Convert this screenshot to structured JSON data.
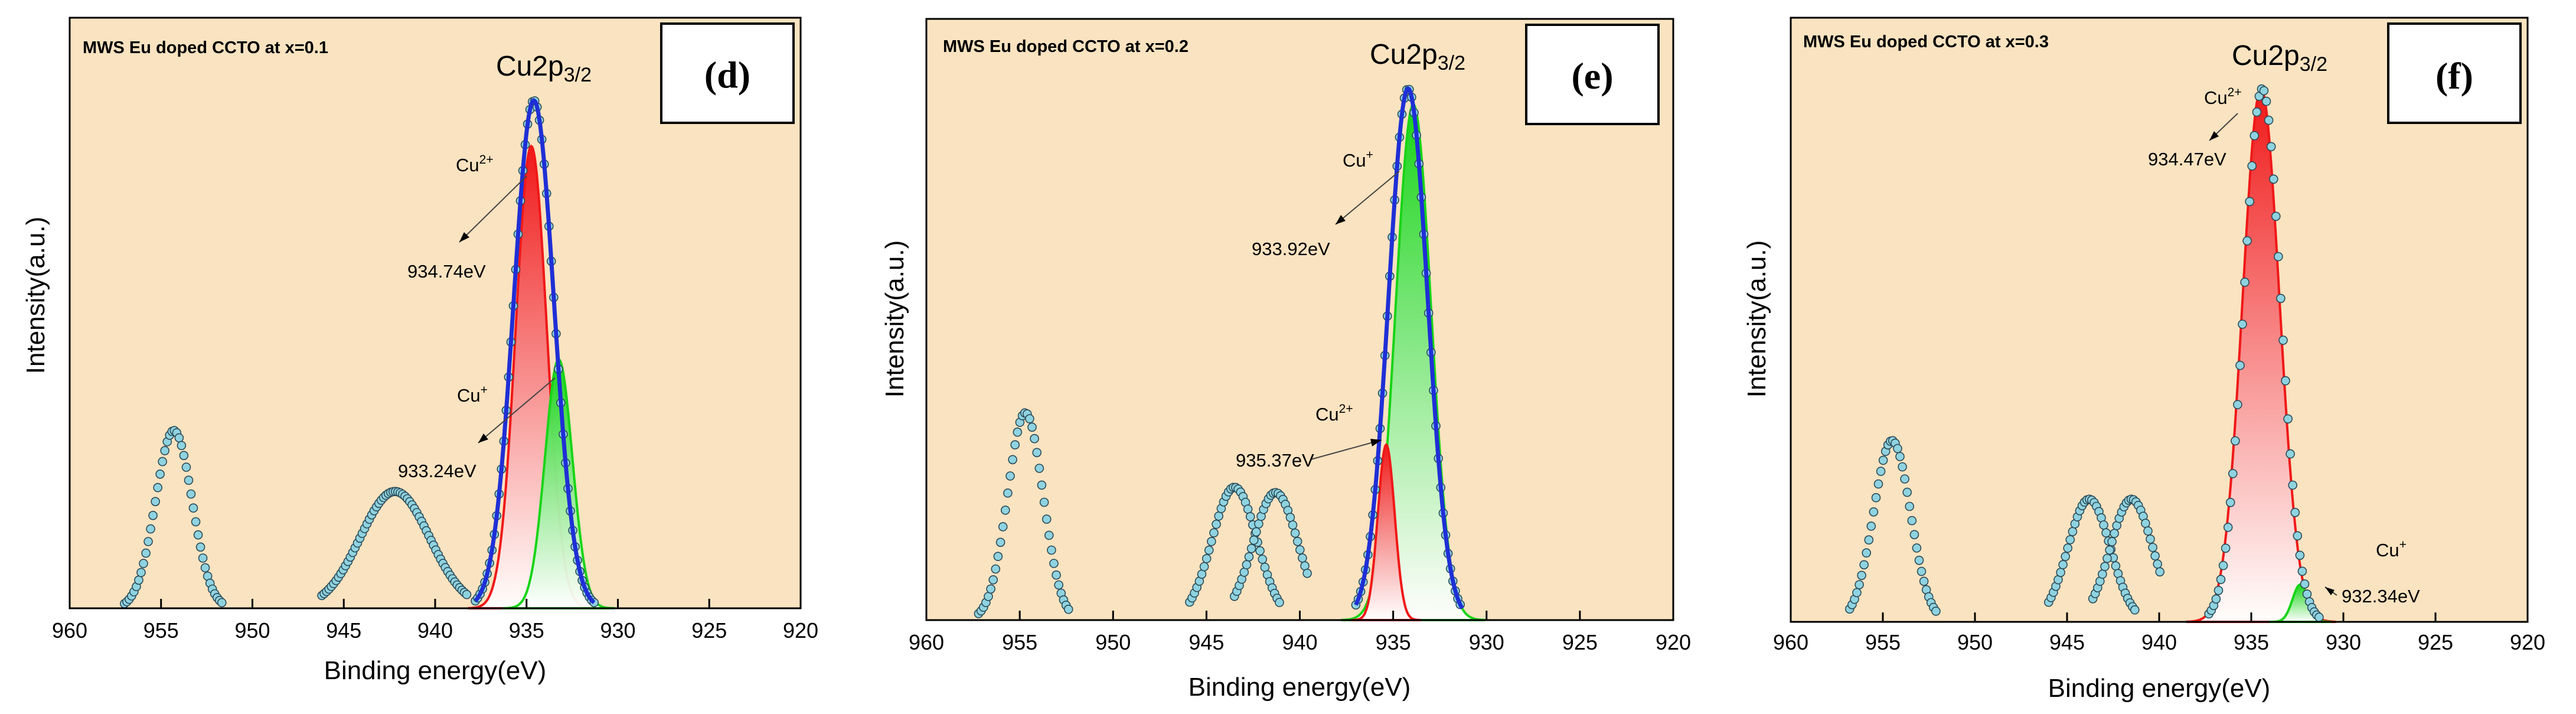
{
  "chart_data": [
    {
      "type": "line",
      "title": "MWS Eu doped CCTO at x=0.1",
      "panel_label": "(d)",
      "peak_title": "Cu2p",
      "peak_title_sub": "3/2",
      "xlabel": "Binding energy(eV)",
      "ylabel": "Intensity(a.u.)",
      "xlim": [
        960,
        920
      ],
      "xticks": [
        "960",
        "955",
        "950",
        "945",
        "940",
        "935",
        "930",
        "925",
        "920"
      ],
      "ylim": [
        0,
        1
      ],
      "background_color": "#FAE3C0",
      "series": [
        {
          "name": "raw data",
          "kind": "markers",
          "color": "#8FD3E0",
          "peaks": [
            {
              "center": 954.3,
              "sigma": 1.0,
              "height": 0.35,
              "range": [
                957.0,
                951.6
              ]
            },
            {
              "center": 942.2,
              "sigma": 1.9,
              "height": 0.23,
              "range": [
                946.2,
                938.2
              ]
            },
            {
              "center": 934.6,
              "sigma": 1.1,
              "height": 1.0,
              "range": [
                937.8,
                931.3
              ]
            }
          ]
        },
        {
          "name": "envelope fit",
          "kind": "line",
          "color": "#1F2FD6",
          "peaks": [
            {
              "center": 934.6,
              "sigma": 1.1,
              "height": 1.0,
              "range": [
                937.8,
                931.3
              ]
            }
          ]
        },
        {
          "name": "Cu2+",
          "kind": "filled",
          "color": "#F01818",
          "center": 934.74,
          "sigma": 0.85,
          "height": 0.91
        },
        {
          "name": "Cu+",
          "kind": "filled",
          "color": "#18D418",
          "center": 933.24,
          "sigma": 0.75,
          "height": 0.49
        }
      ],
      "annotations": [
        {
          "label": "Cu",
          "sup": "2+",
          "value": "934.74eV"
        },
        {
          "label": "Cu",
          "sup": "+",
          "value": "933.24eV"
        }
      ]
    },
    {
      "type": "line",
      "title": "MWS Eu doped CCTO at x=0.2",
      "panel_label": "(e)",
      "peak_title": "Cu2p",
      "peak_title_sub": "3/2",
      "xlabel": "Binding energy(eV)",
      "ylabel": "Intensity(a.u.)",
      "xlim": [
        960,
        920
      ],
      "xticks": [
        "960",
        "955",
        "950",
        "945",
        "940",
        "935",
        "930",
        "925",
        "920"
      ],
      "ylim": [
        0,
        1
      ],
      "background_color": "#FAE3C0",
      "series": [
        {
          "name": "raw data",
          "kind": "markers",
          "color": "#8FD3E0",
          "peaks": [
            {
              "center": 954.7,
              "sigma": 0.95,
              "height": 0.39,
              "range": [
                957.2,
                952.3
              ]
            },
            {
              "center": 943.5,
              "sigma": 1.2,
              "height": 0.25,
              "range": [
                945.9,
                941.0
              ]
            },
            {
              "center": 941.3,
              "sigma": 1.2,
              "height": 0.24,
              "range": [
                943.5,
                939.5
              ]
            },
            {
              "center": 934.2,
              "sigma": 1.05,
              "height": 1.0,
              "range": [
                937.0,
                931.3
              ]
            }
          ]
        },
        {
          "name": "envelope fit",
          "kind": "line",
          "color": "#1F2FD6",
          "peaks": [
            {
              "center": 934.2,
              "sigma": 1.05,
              "height": 1.0,
              "range": [
                937.0,
                931.3
              ]
            }
          ]
        },
        {
          "name": "Cu+",
          "kind": "filled",
          "color": "#18D418",
          "center": 933.92,
          "sigma": 0.95,
          "height": 0.97
        },
        {
          "name": "Cu2+",
          "kind": "filled",
          "color": "#F01818",
          "center": 935.37,
          "sigma": 0.45,
          "height": 0.33
        }
      ],
      "annotations": [
        {
          "label": "Cu",
          "sup": "+",
          "value": "933.92eV"
        },
        {
          "label": "Cu",
          "sup": "2+",
          "value": "935.37eV"
        }
      ]
    },
    {
      "type": "line",
      "title": "MWS Eu doped CCTO at x=0.3",
      "panel_label": "(f)",
      "peak_title": "Cu2p",
      "peak_title_sub": "3/2",
      "xlabel": "Binding energy(eV)",
      "ylabel": "Intensity(a.u.)",
      "xlim": [
        960,
        920
      ],
      "xticks": [
        "960",
        "955",
        "950",
        "945",
        "940",
        "935",
        "930",
        "925",
        "920"
      ],
      "ylim": [
        0,
        1
      ],
      "background_color": "#FAE3C0",
      "series": [
        {
          "name": "raw data",
          "kind": "markers",
          "color": "#8FD3E0",
          "peaks": [
            {
              "center": 954.5,
              "sigma": 1.0,
              "height": 0.34,
              "range": [
                956.8,
                952.0
              ]
            },
            {
              "center": 943.8,
              "sigma": 1.15,
              "height": 0.23,
              "range": [
                946.0,
                941.2
              ]
            },
            {
              "center": 941.5,
              "sigma": 1.15,
              "height": 0.23,
              "range": [
                943.6,
                939.9
              ]
            },
            {
              "center": 934.4,
              "sigma": 1.0,
              "height": 1.0,
              "range": [
                937.3,
                931.3
              ]
            }
          ]
        },
        {
          "name": "Cu2+",
          "kind": "filled",
          "color": "#F01818",
          "center": 934.47,
          "sigma": 1.0,
          "height": 1.0
        },
        {
          "name": "Cu+",
          "kind": "filled",
          "color": "#18D418",
          "center": 932.34,
          "sigma": 0.42,
          "height": 0.07
        }
      ],
      "annotations": [
        {
          "label": "Cu",
          "sup": "2+",
          "value": "934.47eV"
        },
        {
          "label": "Cu",
          "sup": "+",
          "value": "932.34eV"
        }
      ]
    }
  ]
}
